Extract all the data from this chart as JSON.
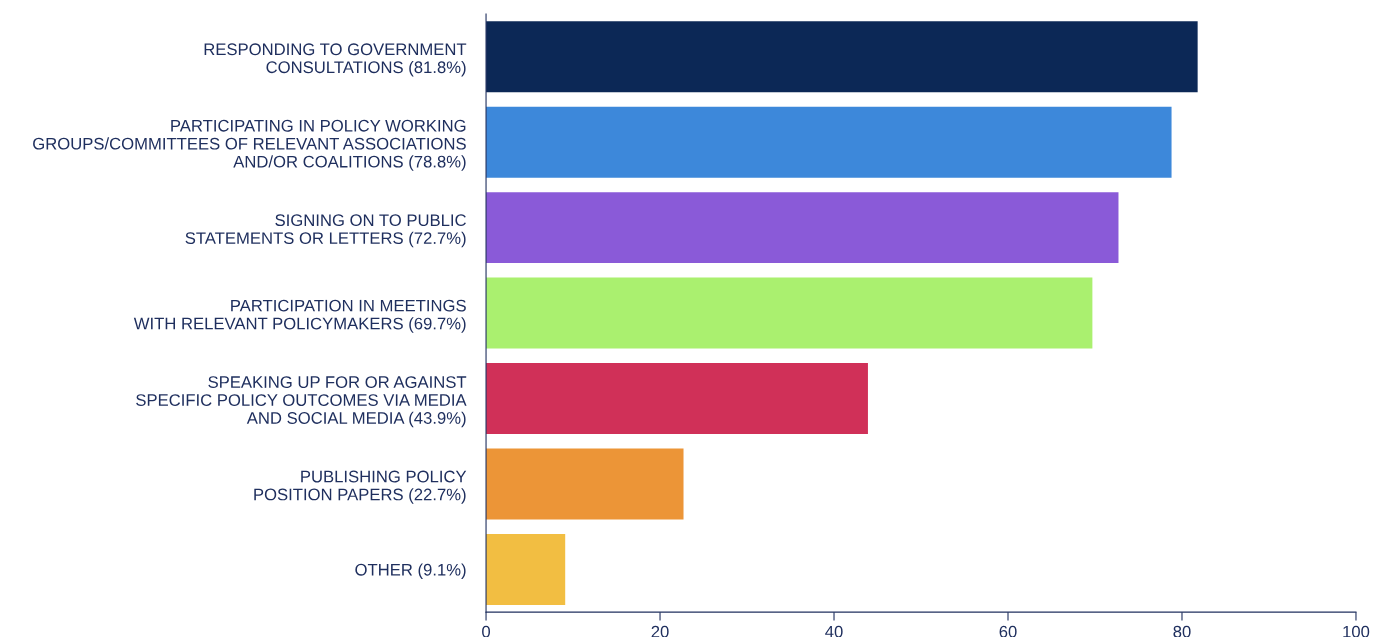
{
  "chart_data": {
    "type": "bar",
    "orientation": "horizontal",
    "categories": [
      "RESPONDING TO GOVERNMENT\nCONSULTATIONS (81.8%)",
      "PARTICIPATING IN POLICY WORKING\nGROUPS/COMMITTEES OF RELEVANT ASSOCIATIONS\nAND/OR COALITIONS (78.8%)",
      "SIGNING ON TO PUBLIC\nSTATEMENTS OR LETTERS (72.7%)",
      "PARTICIPATION IN MEETINGS\nWITH RELEVANT POLICYMAKERS (69.7%)",
      "SPEAKING UP FOR OR AGAINST\nSPECIFIC POLICY OUTCOMES VIA MEDIA\nAND SOCIAL MEDIA (43.9%)",
      "PUBLISHING POLICY\nPOSITION PAPERS (22.7%)",
      "OTHER (9.1%)"
    ],
    "values": [
      81.8,
      78.8,
      72.7,
      69.7,
      43.9,
      22.7,
      9.1
    ],
    "colors": [
      "#0c2856",
      "#3d88da",
      "#8a5ad8",
      "#aaf06f",
      "#d03058",
      "#ec9537",
      "#f2be42"
    ],
    "xlim": [
      0,
      100
    ],
    "xticks": [
      0,
      20,
      40,
      60,
      80,
      100
    ],
    "grid": false,
    "legend": false
  }
}
